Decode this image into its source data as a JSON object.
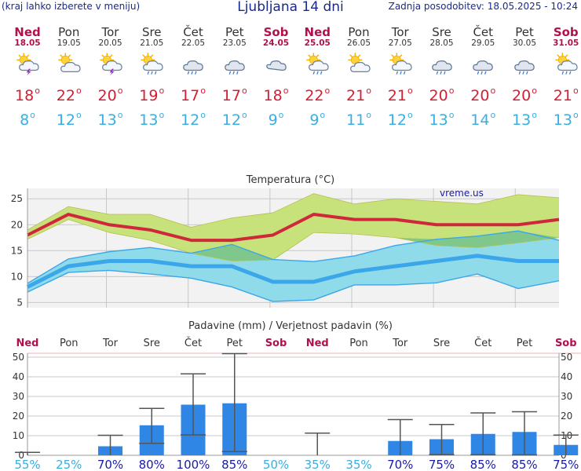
{
  "header": {
    "menu_hint": "(kraj lahko izberete v meniju)",
    "title": "Ljubljana 14 dni",
    "last_update": "Zadnja posodobitev: 18.05.2025 - 10:24"
  },
  "days": [
    {
      "name": "Ned",
      "date": "18.05",
      "weekend": true,
      "icon": "sun-cloud-thunder-icon",
      "tmax": "18",
      "tmin": "8"
    },
    {
      "name": "Pon",
      "date": "19.05",
      "weekend": false,
      "icon": "sun-cloud-icon",
      "tmax": "22",
      "tmin": "12"
    },
    {
      "name": "Tor",
      "date": "20.05",
      "weekend": false,
      "icon": "sun-cloud-thunder-icon",
      "tmax": "20",
      "tmin": "13"
    },
    {
      "name": "Sre",
      "date": "21.05",
      "weekend": false,
      "icon": "sun-cloud-rain-icon",
      "tmax": "19",
      "tmin": "13"
    },
    {
      "name": "Čet",
      "date": "22.05",
      "weekend": false,
      "icon": "cloud-rain-icon",
      "tmax": "17",
      "tmin": "12"
    },
    {
      "name": "Pet",
      "date": "23.05",
      "weekend": false,
      "icon": "cloud-rain-icon",
      "tmax": "17",
      "tmin": "12"
    },
    {
      "name": "Sob",
      "date": "24.05",
      "weekend": true,
      "icon": "cloud-icon",
      "tmax": "18",
      "tmin": "9"
    },
    {
      "name": "Ned",
      "date": "25.05",
      "weekend": true,
      "icon": "sun-cloud-rain-icon",
      "tmax": "22",
      "tmin": "9"
    },
    {
      "name": "Pon",
      "date": "26.05",
      "weekend": false,
      "icon": "sun-cloud-icon",
      "tmax": "21",
      "tmin": "11"
    },
    {
      "name": "Tor",
      "date": "27.05",
      "weekend": false,
      "icon": "sun-cloud-rain-icon",
      "tmax": "21",
      "tmin": "12"
    },
    {
      "name": "Sre",
      "date": "28.05",
      "weekend": false,
      "icon": "cloud-rain-icon",
      "tmax": "20",
      "tmin": "13"
    },
    {
      "name": "Čet",
      "date": "29.05",
      "weekend": false,
      "icon": "cloud-rain-icon",
      "tmax": "20",
      "tmin": "14"
    },
    {
      "name": "Pet",
      "date": "30.05",
      "weekend": false,
      "icon": "cloud-rain-icon",
      "tmax": "20",
      "tmin": "13"
    },
    {
      "name": "Sob",
      "date": "31.05",
      "weekend": true,
      "icon": "sun-cloud-rain-icon",
      "tmax": "21",
      "tmin": "13"
    }
  ],
  "colors": {
    "weekend": "#b0104e",
    "max_line": "#d0283b",
    "max_band": "#c7e27a",
    "min_line": "#3ba7ea",
    "min_band": "#8fdbea",
    "overlap": "#7ec37a",
    "bar": "#2f86e4",
    "pct_low": "#3aaee0",
    "pct_high": "#1a1aa8",
    "grid": "#c8c8c8"
  },
  "chart_data": [
    {
      "type": "line",
      "title": "Temperatura (°C)",
      "watermark": "vreme.us",
      "x": [
        "18.05",
        "19.05",
        "20.05",
        "21.05",
        "22.05",
        "23.05",
        "24.05",
        "25.05",
        "26.05",
        "27.05",
        "28.05",
        "29.05",
        "30.05",
        "31.05"
      ],
      "ylim": [
        4,
        27
      ],
      "yticks": [
        5,
        10,
        15,
        20,
        25
      ],
      "series": [
        {
          "name": "max",
          "values": [
            18,
            22,
            20,
            19,
            17,
            17,
            18,
            22,
            21,
            21,
            20,
            20,
            20,
            21
          ]
        },
        {
          "name": "max_low",
          "values": [
            17.2,
            21,
            18.5,
            17,
            14.5,
            13,
            13.2,
            18.5,
            18.2,
            17.5,
            16,
            15.6,
            16.5,
            17.5
          ]
        },
        {
          "name": "max_high",
          "values": [
            19,
            23.5,
            22,
            22,
            19.5,
            21.3,
            22.3,
            26,
            24,
            25,
            24.5,
            24,
            25.8,
            25.2
          ]
        },
        {
          "name": "min",
          "values": [
            8,
            12,
            13,
            13,
            12,
            12,
            9,
            9,
            11,
            12,
            13,
            14,
            13,
            13
          ]
        },
        {
          "name": "min_low",
          "values": [
            7,
            10.8,
            11.2,
            10.5,
            9.7,
            8,
            5.2,
            5.5,
            8.4,
            8.4,
            8.8,
            10.5,
            7.7,
            9.2
          ]
        },
        {
          "name": "min_high",
          "values": [
            8.7,
            13.4,
            14.8,
            15.6,
            14.5,
            16.2,
            13.3,
            12.9,
            14,
            16,
            17.2,
            17.8,
            18.8,
            17
          ]
        }
      ]
    },
    {
      "type": "bar",
      "title": "Padavine (mm) / Verjetnost padavin (%)",
      "x": [
        "Ned",
        "Pon",
        "Tor",
        "Sre",
        "Čet",
        "Pet",
        "Sob",
        "Ned",
        "Pon",
        "Tor",
        "Sre",
        "Čet",
        "Pet",
        "Sob"
      ],
      "weekend": [
        true,
        false,
        false,
        false,
        false,
        false,
        true,
        true,
        false,
        false,
        false,
        false,
        false,
        true
      ],
      "ylim": [
        0,
        52
      ],
      "yticks": [
        0,
        10,
        20,
        30,
        40,
        50
      ],
      "values": [
        0,
        0,
        4.6,
        15.3,
        25.8,
        26.5,
        0,
        0,
        0,
        7.3,
        8.2,
        10.9,
        11.9,
        5.3
      ],
      "err_low": [
        0,
        0,
        0,
        6.1,
        10.4,
        1.9,
        0,
        0,
        0,
        0,
        0.4,
        0.3,
        0.2,
        0
      ],
      "err_high": [
        1.5,
        0,
        10.2,
        23.9,
        41.5,
        51.8,
        0,
        11.3,
        0,
        18.2,
        15.7,
        21.6,
        22.2,
        10.3
      ],
      "probability": [
        "55%",
        "25%",
        "70%",
        "80%",
        "100%",
        "85%",
        "50%",
        "35%",
        "35%",
        "70%",
        "75%",
        "85%",
        "85%",
        "75%"
      ],
      "prob_values": [
        55,
        25,
        70,
        80,
        100,
        85,
        50,
        35,
        35,
        70,
        75,
        85,
        85,
        75
      ]
    }
  ]
}
